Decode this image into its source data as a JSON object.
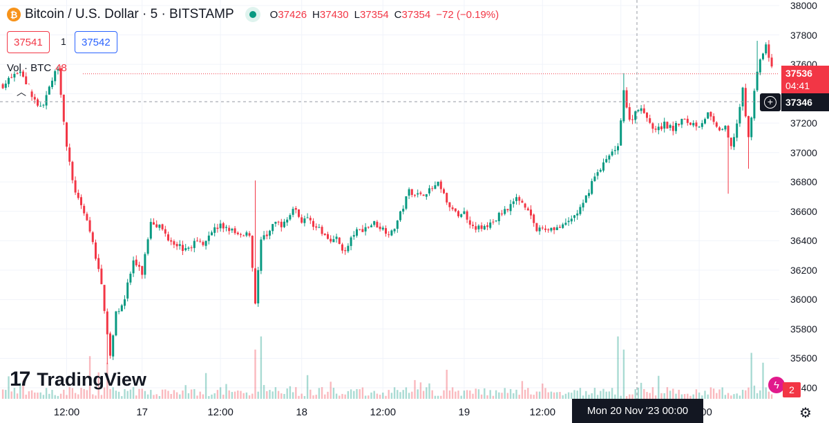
{
  "header": {
    "symbol_title": "Bitcoin / U.S. Dollar · 5 · BITSTAMP",
    "open_key": "O",
    "open": "37426",
    "high_key": "H",
    "high": "37430",
    "low_key": "L",
    "low": "37354",
    "close_key": "C",
    "close": "37354",
    "change": "−72 (−0.19%)"
  },
  "trade": {
    "sell_price": "37541",
    "spread": "1",
    "buy_price": "37542"
  },
  "volume_legend": {
    "label": "Vol · BTC",
    "value": "48"
  },
  "watermark": {
    "logo": "17",
    "text": "TradingView"
  },
  "current_price": {
    "price": "37536",
    "countdown": "04:41"
  },
  "crosshair": {
    "price": "37346",
    "time": "Mon 20 Nov '23   00:00"
  },
  "alerts": {
    "count": "2"
  },
  "colors": {
    "up": "#089981",
    "down": "#f23645",
    "crosshair": "#9598a1",
    "grid": "#f0f3fa"
  },
  "chart_data": {
    "type": "candlestick",
    "symbol": "BTCUSD",
    "exchange": "BITSTAMP",
    "interval": "5",
    "y_ticks": [
      38000,
      37800,
      37600,
      37400,
      37200,
      37000,
      36800,
      36600,
      36400,
      36200,
      36000,
      35800,
      35600,
      35400
    ],
    "y_tick_labels": [
      "38000",
      "37800",
      "37600",
      "",
      "37200",
      "37000",
      "36800",
      "36600",
      "36400",
      "36200",
      "36000",
      "35800",
      "35600",
      "35400"
    ],
    "ylim": [
      35400,
      38000
    ],
    "x_tick_labels": [
      "12:00",
      "17",
      "12:00",
      "18",
      "12:00",
      "19",
      "12:00",
      "20",
      "12:00"
    ],
    "x_tick_index": [
      22,
      48,
      75,
      103,
      131,
      159,
      186,
      213,
      240
    ],
    "candle_count": 266,
    "close_path": [
      [
        0,
        37460
      ],
      [
        6,
        37560
      ],
      [
        9,
        37420
      ],
      [
        13,
        37300
      ],
      [
        16,
        37430
      ],
      [
        19,
        37590
      ],
      [
        22,
        37040
      ],
      [
        24,
        36800
      ],
      [
        27,
        36620
      ],
      [
        29,
        36540
      ],
      [
        31,
        36380
      ],
      [
        34,
        36100
      ],
      [
        37,
        35620
      ],
      [
        39,
        35900
      ],
      [
        42,
        36020
      ],
      [
        45,
        36260
      ],
      [
        48,
        36180
      ],
      [
        51,
        36540
      ],
      [
        54,
        36500
      ],
      [
        57,
        36420
      ],
      [
        60,
        36380
      ],
      [
        63,
        36330
      ],
      [
        66,
        36390
      ],
      [
        69,
        36390
      ],
      [
        72,
        36470
      ],
      [
        75,
        36500
      ],
      [
        78,
        36480
      ],
      [
        82,
        36420
      ],
      [
        85,
        36450
      ],
      [
        87,
        35990
      ],
      [
        89,
        36400
      ],
      [
        91,
        36440
      ],
      [
        94,
        36520
      ],
      [
        97,
        36510
      ],
      [
        100,
        36620
      ],
      [
        103,
        36540
      ],
      [
        106,
        36540
      ],
      [
        109,
        36470
      ],
      [
        112,
        36420
      ],
      [
        115,
        36410
      ],
      [
        118,
        36320
      ],
      [
        121,
        36450
      ],
      [
        125,
        36490
      ],
      [
        128,
        36520
      ],
      [
        131,
        36480
      ],
      [
        134,
        36450
      ],
      [
        137,
        36580
      ],
      [
        140,
        36740
      ],
      [
        143,
        36720
      ],
      [
        146,
        36730
      ],
      [
        150,
        36780
      ],
      [
        153,
        36670
      ],
      [
        156,
        36580
      ],
      [
        159,
        36590
      ],
      [
        162,
        36500
      ],
      [
        165,
        36480
      ],
      [
        168,
        36510
      ],
      [
        171,
        36570
      ],
      [
        175,
        36650
      ],
      [
        178,
        36690
      ],
      [
        181,
        36620
      ],
      [
        184,
        36470
      ],
      [
        187,
        36480
      ],
      [
        190,
        36490
      ],
      [
        193,
        36490
      ],
      [
        197,
        36570
      ],
      [
        200,
        36640
      ],
      [
        203,
        36800
      ],
      [
        206,
        36900
      ],
      [
        209,
        36970
      ],
      [
        212,
        37060
      ],
      [
        214,
        37420
      ],
      [
        216,
        37210
      ],
      [
        219,
        37310
      ],
      [
        222,
        37230
      ],
      [
        225,
        37150
      ],
      [
        228,
        37190
      ],
      [
        231,
        37160
      ],
      [
        234,
        37220
      ],
      [
        237,
        37200
      ],
      [
        240,
        37190
      ],
      [
        243,
        37260
      ],
      [
        246,
        37160
      ],
      [
        249,
        37160
      ],
      [
        251,
        37030
      ],
      [
        253,
        37200
      ],
      [
        255,
        37420
      ],
      [
        257,
        37090
      ],
      [
        259,
        37430
      ],
      [
        261,
        37640
      ],
      [
        263,
        37720
      ],
      [
        266,
        37536
      ]
    ],
    "spikes": [
      {
        "i": 36,
        "low": 35560
      },
      {
        "i": 87,
        "high": 36810
      },
      {
        "i": 214,
        "high": 37540
      },
      {
        "i": 250,
        "low": 36720
      },
      {
        "i": 257,
        "low": 36890
      },
      {
        "i": 260,
        "high": 37760
      },
      {
        "i": 263,
        "high": 37750
      }
    ],
    "volume_spikes": [
      [
        30,
        0.65
      ],
      [
        36,
        0.55
      ],
      [
        87,
        0.75
      ],
      [
        89,
        0.95
      ],
      [
        212,
        0.95
      ],
      [
        214,
        0.75
      ],
      [
        258,
        0.7
      ],
      [
        262,
        0.55
      ],
      [
        226,
        0.35
      ],
      [
        144,
        0.25
      ]
    ],
    "last_price": 37536,
    "crosshair_price": 37346,
    "crosshair_time": "Mon 20 Nov '23 00:00"
  }
}
